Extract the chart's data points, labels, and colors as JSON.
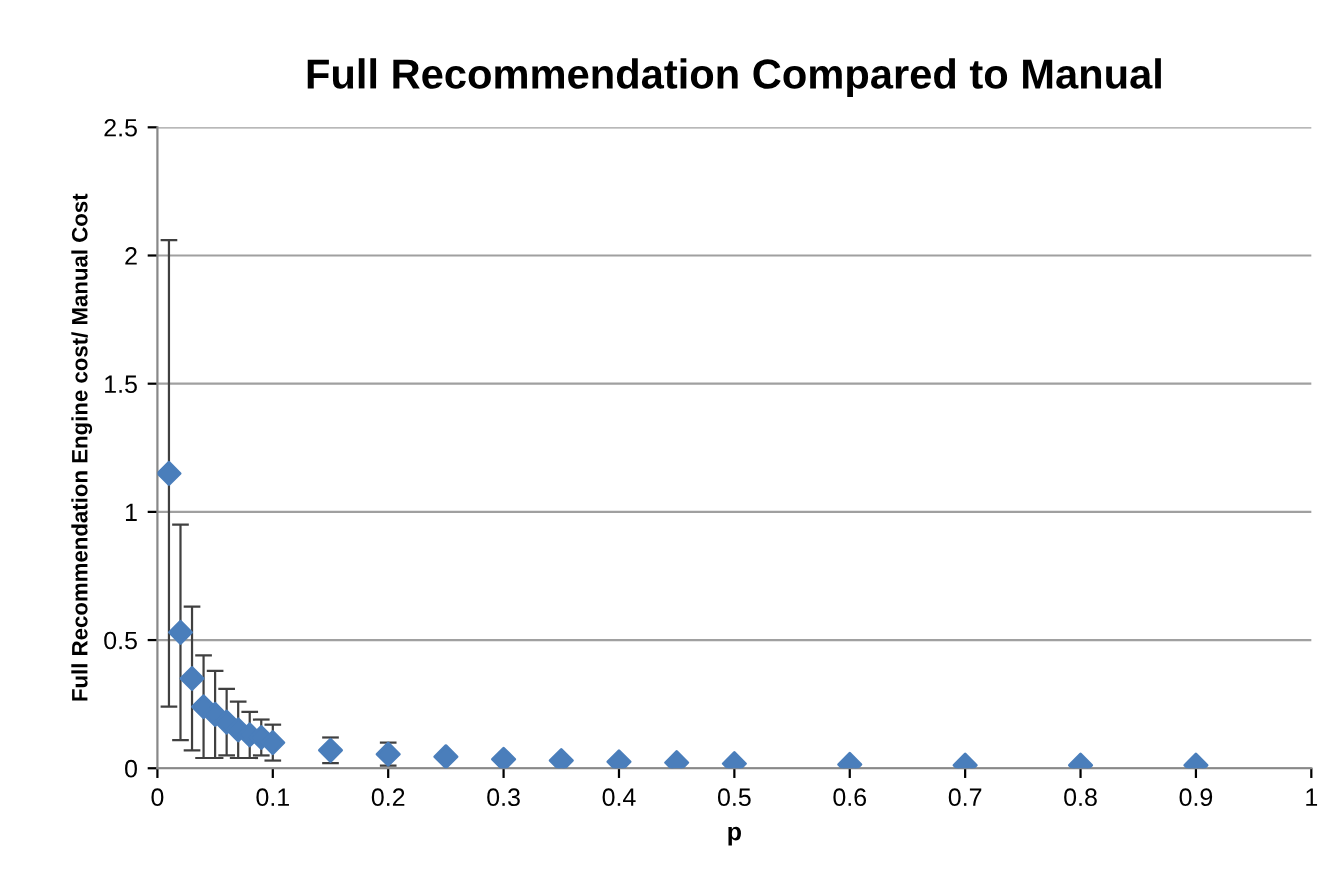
{
  "chart_data": {
    "type": "scatter",
    "title": "Full Recommendation Compared to Manual",
    "xlabel": "p",
    "ylabel": "Full Recommendation Engine cost/ Manual Cost",
    "x": [
      0.01,
      0.02,
      0.03,
      0.04,
      0.05,
      0.06,
      0.07,
      0.08,
      0.09,
      0.1,
      0.15,
      0.2,
      0.25,
      0.3,
      0.35,
      0.4,
      0.45,
      0.5,
      0.6,
      0.7,
      0.8,
      0.9
    ],
    "series": [
      {
        "color": "#4a7ebb",
        "values": [
          1.15,
          0.53,
          0.35,
          0.24,
          0.21,
          0.18,
          0.15,
          0.13,
          0.12,
          0.1,
          0.07,
          0.055,
          0.045,
          0.035,
          0.03,
          0.025,
          0.022,
          0.018,
          0.015,
          0.012,
          0.012,
          0.012
        ],
        "errors": [
          0.91,
          0.42,
          0.28,
          0.2,
          0.17,
          0.13,
          0.11,
          0.09,
          0.07,
          0.07,
          0.05,
          0.045,
          null,
          null,
          null,
          null,
          null,
          null,
          null,
          null,
          null,
          null
        ]
      }
    ],
    "xlim": [
      0,
      1
    ],
    "xticks": [
      0,
      0.1,
      0.2,
      0.3,
      0.4,
      0.5,
      0.6,
      0.7,
      0.8,
      0.9,
      1
    ],
    "ylim": [
      0,
      2.5
    ],
    "yticks": [
      0,
      0.5,
      1,
      1.5,
      2,
      2.5
    ],
    "grid": "y",
    "marker": "diamond",
    "legend": false
  }
}
